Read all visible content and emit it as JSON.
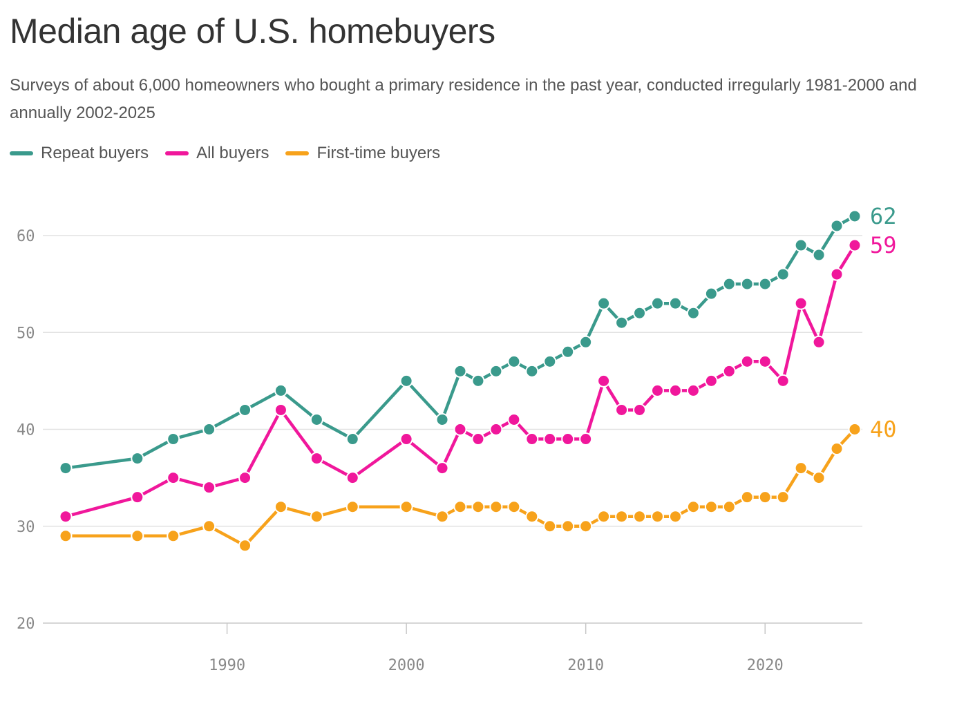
{
  "chart_data": {
    "type": "line",
    "title": "Median age of U.S. homebuyers",
    "subtitle": "Surveys of about 6,000 homeowners who bought a primary residence in the past year, conducted irregularly 1981-2000 and annually 2002-2025",
    "xlabel": "",
    "ylabel": "",
    "xlim": [
      1981,
      2025
    ],
    "ylim": [
      20,
      62
    ],
    "x_ticks": [
      1990,
      2000,
      2010,
      2020
    ],
    "y_ticks": [
      20,
      30,
      40,
      50,
      60
    ],
    "grid": true,
    "legend_position": "top-left",
    "x": [
      1981,
      1985,
      1987,
      1989,
      1991,
      1993,
      1995,
      1997,
      2000,
      2002,
      2003,
      2004,
      2005,
      2006,
      2007,
      2008,
      2009,
      2010,
      2011,
      2012,
      2013,
      2014,
      2015,
      2016,
      2017,
      2018,
      2019,
      2020,
      2021,
      2022,
      2023,
      2024,
      2025
    ],
    "series": [
      {
        "name": "Repeat buyers",
        "color": "#3a9a8c",
        "end_label": "62",
        "values": [
          36,
          37,
          39,
          40,
          42,
          44,
          41,
          39,
          45,
          41,
          46,
          45,
          46,
          47,
          46,
          47,
          48,
          49,
          53,
          51,
          52,
          53,
          53,
          52,
          54,
          55,
          55,
          55,
          56,
          59,
          58,
          61,
          62
        ]
      },
      {
        "name": "All buyers",
        "color": "#f0179b",
        "end_label": "59",
        "values": [
          31,
          33,
          35,
          34,
          35,
          42,
          37,
          35,
          39,
          36,
          40,
          39,
          40,
          41,
          39,
          39,
          39,
          39,
          45,
          42,
          42,
          44,
          44,
          44,
          45,
          46,
          47,
          47,
          45,
          53,
          49,
          56,
          59
        ]
      },
      {
        "name": "First-time buyers",
        "color": "#f7a21b",
        "end_label": "40",
        "values": [
          29,
          29,
          29,
          30,
          28,
          32,
          31,
          32,
          32,
          31,
          32,
          32,
          32,
          32,
          31,
          30,
          30,
          30,
          31,
          31,
          31,
          31,
          31,
          32,
          32,
          32,
          33,
          33,
          33,
          36,
          35,
          38,
          40
        ]
      }
    ]
  }
}
